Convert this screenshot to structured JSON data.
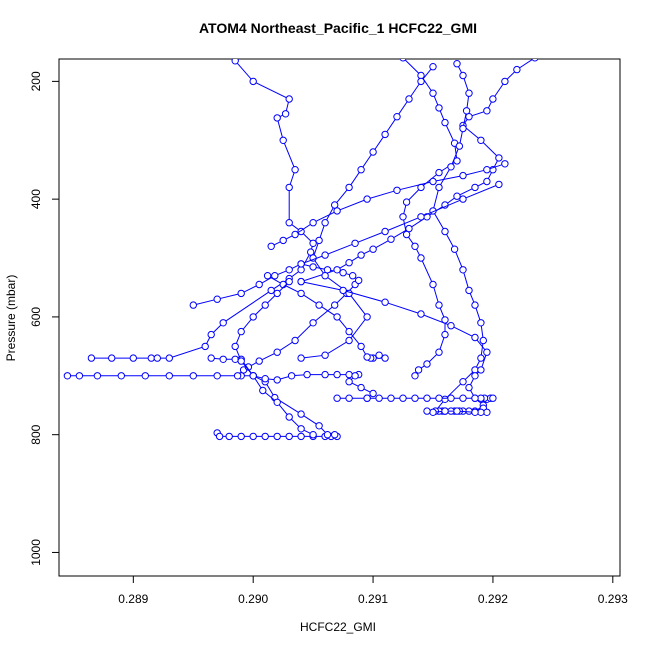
{
  "chart_data": {
    "type": "line",
    "title": "ATOM4 Northeast_Pacific_1 HCFC22_GMI",
    "xlabel": "HCFC22_GMI",
    "ylabel": "Pressure (mbar)",
    "xlim": [
      0.28838,
      0.29306
    ],
    "ylim": [
      1040,
      162
    ],
    "y_reversed": true,
    "x_ticks": [
      "0.289",
      "0.290",
      "0.291",
      "0.292",
      "0.293"
    ],
    "y_ticks": [
      "200",
      "400",
      "600",
      "800",
      "1000"
    ],
    "x_tick_values": [
      0.289,
      0.29,
      0.291,
      0.292,
      0.293
    ],
    "y_tick_values": [
      200,
      400,
      600,
      800,
      1000
    ],
    "marker": "open-circle",
    "color": "#0000ff",
    "grid": false,
    "series": [
      {
        "values": [
          [
            0.2897,
            797
          ],
          [
            0.28972,
            803
          ],
          [
            0.2898,
            803
          ],
          [
            0.2899,
            803
          ],
          [
            0.29,
            803
          ],
          [
            0.2901,
            803
          ],
          [
            0.2902,
            803
          ],
          [
            0.2903,
            803
          ],
          [
            0.2904,
            803
          ],
          [
            0.2905,
            803
          ],
          [
            0.2906,
            803
          ],
          [
            0.29065,
            803
          ],
          [
            0.2907,
            803
          ],
          [
            0.29068,
            800
          ],
          [
            0.29062,
            800
          ],
          [
            0.29055,
            785
          ],
          [
            0.2904,
            765
          ],
          [
            0.29018,
            737
          ],
          [
            0.2901,
            710
          ],
          [
            0.29,
            700
          ],
          [
            0.2899,
            700
          ],
          [
            0.2897,
            700
          ],
          [
            0.2895,
            700
          ],
          [
            0.2893,
            700
          ],
          [
            0.2891,
            700
          ],
          [
            0.2889,
            700
          ],
          [
            0.2887,
            700
          ],
          [
            0.28855,
            700
          ],
          [
            0.28845,
            700
          ]
        ]
      },
      {
        "values": [
          [
            0.28987,
            700
          ],
          [
            0.28992,
            690
          ],
          [
            0.28996,
            685
          ],
          [
            0.29005,
            675
          ],
          [
            0.2902,
            660
          ],
          [
            0.29035,
            640
          ],
          [
            0.2905,
            610
          ],
          [
            0.29068,
            580
          ],
          [
            0.29078,
            560
          ],
          [
            0.29085,
            545
          ],
          [
            0.29088,
            538
          ],
          [
            0.29083,
            530
          ],
          [
            0.29075,
            525
          ],
          [
            0.29062,
            520
          ],
          [
            0.2905,
            515
          ],
          [
            0.2904,
            510
          ]
        ]
      },
      {
        "values": [
          [
            0.28965,
            670
          ],
          [
            0.28975,
            672
          ],
          [
            0.28985,
            672
          ],
          [
            0.2899,
            672
          ],
          [
            0.29,
            700
          ],
          [
            0.2901,
            705
          ],
          [
            0.2902,
            707
          ],
          [
            0.29032,
            700
          ],
          [
            0.29045,
            698
          ],
          [
            0.2906,
            698
          ],
          [
            0.2907,
            698
          ],
          [
            0.2908,
            698
          ],
          [
            0.29088,
            698
          ]
        ]
      },
      {
        "values": [
          [
            0.28865,
            670
          ],
          [
            0.28882,
            670
          ],
          [
            0.289,
            670
          ],
          [
            0.28915,
            670
          ],
          [
            0.2892,
            670
          ],
          [
            0.2893,
            670
          ],
          [
            0.2896,
            650
          ],
          [
            0.28965,
            630
          ],
          [
            0.28975,
            610
          ],
          [
            0.29015,
            555
          ],
          [
            0.2903,
            535
          ],
          [
            0.2904,
            520
          ],
          [
            0.29048,
            490
          ],
          [
            0.2905,
            475
          ],
          [
            0.2904,
            455
          ],
          [
            0.2903,
            440
          ],
          [
            0.2903,
            380
          ],
          [
            0.29035,
            350
          ],
          [
            0.29025,
            300
          ],
          [
            0.2902,
            262
          ],
          [
            0.29027,
            255
          ],
          [
            0.2903,
            230
          ],
          [
            0.29,
            200
          ],
          [
            0.28985,
            165
          ]
        ]
      },
      {
        "values": [
          [
            0.2904,
            540
          ],
          [
            0.2907,
            520
          ],
          [
            0.2908,
            508
          ],
          [
            0.2909,
            495
          ],
          [
            0.291,
            485
          ],
          [
            0.29115,
            468
          ],
          [
            0.2913,
            450
          ],
          [
            0.29145,
            430
          ],
          [
            0.2916,
            410
          ],
          [
            0.2917,
            395
          ],
          [
            0.29185,
            380
          ],
          [
            0.29195,
            370
          ],
          [
            0.292,
            350
          ],
          [
            0.29205,
            330
          ],
          [
            0.2919,
            300
          ],
          [
            0.29175,
            275
          ],
          [
            0.2918,
            260
          ],
          [
            0.29195,
            250
          ],
          [
            0.292,
            230
          ],
          [
            0.2921,
            200
          ],
          [
            0.2922,
            180
          ],
          [
            0.29235,
            160
          ]
        ]
      },
      {
        "values": [
          [
            0.29135,
            700
          ],
          [
            0.29138,
            690
          ],
          [
            0.29145,
            680
          ],
          [
            0.29155,
            660
          ],
          [
            0.2916,
            630
          ],
          [
            0.2916,
            605
          ],
          [
            0.29155,
            580
          ],
          [
            0.2915,
            545
          ],
          [
            0.2914,
            500
          ],
          [
            0.29135,
            480
          ],
          [
            0.29128,
            460
          ],
          [
            0.29125,
            430
          ],
          [
            0.29128,
            405
          ],
          [
            0.2914,
            380
          ],
          [
            0.29155,
            355
          ],
          [
            0.2917,
            335
          ],
          [
            0.29168,
            305
          ],
          [
            0.2916,
            270
          ],
          [
            0.29155,
            245
          ],
          [
            0.2915,
            220
          ],
          [
            0.2914,
            190
          ],
          [
            0.29125,
            160
          ]
        ]
      },
      {
        "values": [
          [
            0.29185,
            760
          ],
          [
            0.2918,
            760
          ],
          [
            0.29175,
            760
          ],
          [
            0.29172,
            760
          ],
          [
            0.29168,
            760
          ],
          [
            0.29165,
            760
          ],
          [
            0.2916,
            760
          ],
          [
            0.29158,
            760
          ],
          [
            0.29155,
            760
          ],
          [
            0.29152,
            760
          ],
          [
            0.2916,
            740
          ],
          [
            0.29175,
            710
          ],
          [
            0.29185,
            690
          ],
          [
            0.2919,
            670
          ],
          [
            0.29192,
            640
          ],
          [
            0.2919,
            610
          ],
          [
            0.29185,
            580
          ],
          [
            0.2918,
            555
          ],
          [
            0.29175,
            520
          ],
          [
            0.29168,
            485
          ],
          [
            0.2916,
            455
          ],
          [
            0.2915,
            420
          ],
          [
            0.29155,
            380
          ],
          [
            0.29165,
            345
          ],
          [
            0.29172,
            310
          ],
          [
            0.29175,
            280
          ],
          [
            0.29178,
            250
          ],
          [
            0.2918,
            220
          ],
          [
            0.29175,
            190
          ],
          [
            0.2917,
            170
          ]
        ]
      },
      {
        "values": [
          [
            0.2919,
            760
          ],
          [
            0.29192,
            750
          ],
          [
            0.29195,
            740
          ],
          [
            0.29198,
            738
          ],
          [
            0.292,
            738
          ],
          [
            0.29193,
            738
          ],
          [
            0.2919,
            740
          ],
          [
            0.29192,
            755
          ],
          [
            0.29195,
            762
          ],
          [
            0.2919,
            762
          ],
          [
            0.29185,
            762
          ],
          [
            0.2917,
            760
          ],
          [
            0.2916,
            760
          ],
          [
            0.2915,
            762
          ],
          [
            0.29145,
            760
          ]
        ]
      },
      {
        "values": [
          [
            0.2907,
            738
          ],
          [
            0.2908,
            738
          ],
          [
            0.29095,
            738
          ],
          [
            0.29105,
            738
          ],
          [
            0.29115,
            738
          ],
          [
            0.29125,
            738
          ],
          [
            0.29135,
            738
          ],
          [
            0.29145,
            738
          ],
          [
            0.29155,
            738
          ],
          [
            0.29165,
            738
          ],
          [
            0.29175,
            738
          ],
          [
            0.29185,
            738
          ],
          [
            0.2919,
            738
          ]
        ]
      },
      {
        "values": [
          [
            0.2904,
            670
          ],
          [
            0.2906,
            665
          ],
          [
            0.2908,
            640
          ],
          [
            0.29095,
            600
          ],
          [
            0.2908,
            560
          ],
          [
            0.2906,
            530
          ],
          [
            0.2905,
            500
          ],
          [
            0.29055,
            470
          ],
          [
            0.2906,
            440
          ],
          [
            0.29068,
            410
          ],
          [
            0.2908,
            380
          ],
          [
            0.2909,
            350
          ],
          [
            0.291,
            320
          ],
          [
            0.2911,
            290
          ],
          [
            0.2912,
            260
          ],
          [
            0.2913,
            230
          ],
          [
            0.2914,
            200
          ],
          [
            0.2915,
            175
          ]
        ]
      },
      {
        "values": [
          [
            0.291,
            670
          ],
          [
            0.29105,
            665
          ],
          [
            0.2911,
            670
          ],
          [
            0.29098,
            670
          ],
          [
            0.29095,
            668
          ],
          [
            0.2909,
            650
          ],
          [
            0.2908,
            625
          ],
          [
            0.2907,
            600
          ],
          [
            0.29055,
            580
          ],
          [
            0.2904,
            560
          ],
          [
            0.29025,
            545
          ],
          [
            0.29012,
            530
          ]
        ]
      },
      {
        "values": [
          [
            0.2903,
            540
          ],
          [
            0.2902,
            560
          ],
          [
            0.2901,
            580
          ],
          [
            0.29,
            600
          ],
          [
            0.2899,
            625
          ],
          [
            0.28985,
            650
          ],
          [
            0.2899,
            675
          ],
          [
            0.29,
            700
          ],
          [
            0.29008,
            725
          ],
          [
            0.2902,
            745
          ],
          [
            0.2903,
            770
          ],
          [
            0.2904,
            790
          ],
          [
            0.2905,
            800
          ]
        ]
      },
      {
        "values": [
          [
            0.29015,
            480
          ],
          [
            0.29025,
            470
          ],
          [
            0.29035,
            460
          ],
          [
            0.2905,
            440
          ],
          [
            0.2907,
            420
          ],
          [
            0.29095,
            400
          ],
          [
            0.2912,
            385
          ],
          [
            0.2915,
            370
          ],
          [
            0.29175,
            360
          ],
          [
            0.29195,
            350
          ],
          [
            0.2921,
            340
          ]
        ]
      },
      {
        "values": [
          [
            0.2895,
            580
          ],
          [
            0.2897,
            570
          ],
          [
            0.2899,
            560
          ],
          [
            0.29005,
            545
          ],
          [
            0.29018,
            530
          ],
          [
            0.2903,
            520
          ],
          [
            0.2904,
            510
          ],
          [
            0.2906,
            495
          ],
          [
            0.29085,
            475
          ],
          [
            0.2911,
            455
          ],
          [
            0.2914,
            430
          ],
          [
            0.29175,
            400
          ],
          [
            0.29205,
            375
          ]
        ]
      },
      {
        "values": [
          [
            0.2904,
            540
          ],
          [
            0.29075,
            555
          ],
          [
            0.2911,
            575
          ],
          [
            0.2914,
            595
          ],
          [
            0.29165,
            615
          ],
          [
            0.29185,
            635
          ],
          [
            0.29195,
            660
          ],
          [
            0.2919,
            690
          ],
          [
            0.29185,
            700
          ],
          [
            0.2918,
            720
          ],
          [
            0.29185,
            738
          ]
        ]
      },
      {
        "values": [
          [
            0.29085,
            700
          ],
          [
            0.2908,
            710
          ],
          [
            0.2909,
            720
          ],
          [
            0.291,
            730
          ],
          [
            0.29095,
            738
          ]
        ]
      }
    ]
  }
}
